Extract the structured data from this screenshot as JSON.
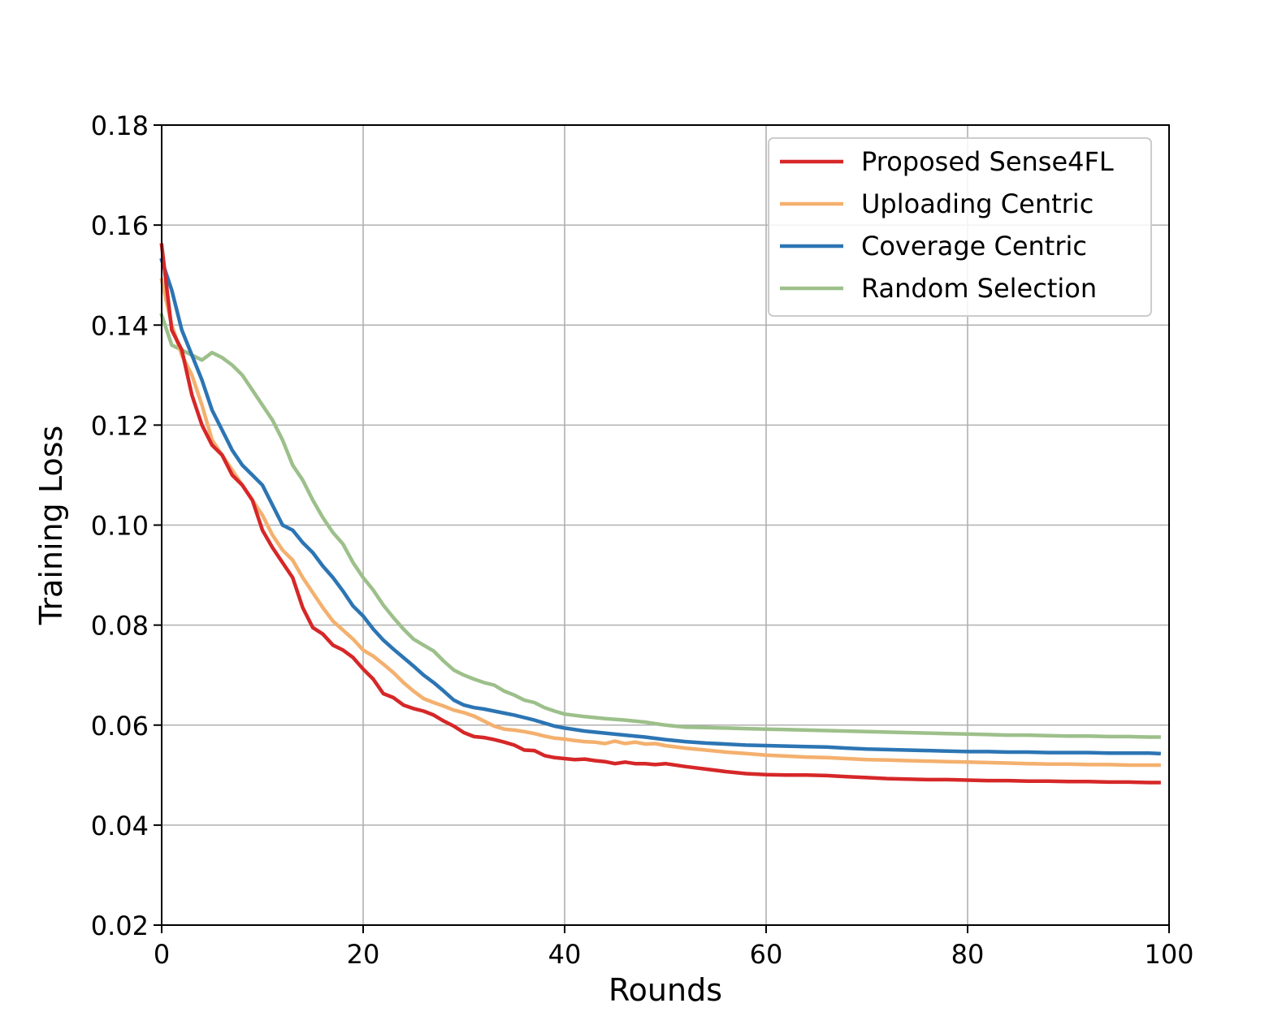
{
  "chart_data": {
    "type": "line",
    "title": "",
    "xlabel": "Rounds",
    "ylabel": "Training Loss",
    "xlim": [
      0,
      100
    ],
    "ylim": [
      0.02,
      0.18
    ],
    "xticks": [
      0,
      20,
      40,
      60,
      80,
      100
    ],
    "xtick_labels": [
      "0",
      "20",
      "40",
      "60",
      "80",
      "100"
    ],
    "yticks": [
      0.02,
      0.04,
      0.06,
      0.08,
      0.1,
      0.12,
      0.14,
      0.16,
      0.18
    ],
    "ytick_labels": [
      "0.02",
      "0.04",
      "0.06",
      "0.08",
      "0.10",
      "0.12",
      "0.14",
      "0.16",
      "0.18"
    ],
    "grid": true,
    "legend_position": "top-right",
    "series": [
      {
        "name": "Proposed Sense4FL",
        "color": "#d62728",
        "x": [
          0,
          1,
          2,
          3,
          4,
          5,
          6,
          7,
          8,
          9,
          10,
          11,
          12,
          13,
          14,
          15,
          16,
          17,
          18,
          19,
          20,
          21,
          22,
          23,
          24,
          25,
          26,
          27,
          28,
          29,
          30,
          31,
          32,
          33,
          34,
          35,
          36,
          37,
          38,
          39,
          40,
          41,
          42,
          43,
          44,
          45,
          46,
          47,
          48,
          49,
          50,
          52,
          54,
          56,
          58,
          60,
          62,
          64,
          66,
          68,
          70,
          72,
          74,
          76,
          78,
          80,
          82,
          84,
          86,
          88,
          90,
          92,
          94,
          96,
          98,
          99
        ],
        "y": [
          0.156,
          0.139,
          0.135,
          0.126,
          0.12,
          0.116,
          0.114,
          0.11,
          0.108,
          0.105,
          0.099,
          0.0955,
          0.0925,
          0.0895,
          0.0835,
          0.0795,
          0.0782,
          0.076,
          0.075,
          0.0735,
          0.0712,
          0.0692,
          0.0663,
          0.0655,
          0.064,
          0.0633,
          0.0628,
          0.062,
          0.0608,
          0.0598,
          0.0585,
          0.0577,
          0.0575,
          0.0571,
          0.0566,
          0.056,
          0.055,
          0.0549,
          0.0539,
          0.0535,
          0.0533,
          0.0531,
          0.0532,
          0.0529,
          0.0527,
          0.0523,
          0.0526,
          0.0523,
          0.0523,
          0.0521,
          0.0523,
          0.0517,
          0.0512,
          0.0507,
          0.0503,
          0.0501,
          0.05,
          0.05,
          0.0499,
          0.0497,
          0.0495,
          0.0493,
          0.0492,
          0.0491,
          0.0491,
          0.049,
          0.0489,
          0.0489,
          0.0488,
          0.0488,
          0.0487,
          0.0487,
          0.0486,
          0.0486,
          0.0485,
          0.0485
        ]
      },
      {
        "name": "Uploading Centric",
        "color": "#f4b06e",
        "x": [
          0,
          1,
          2,
          3,
          4,
          5,
          6,
          7,
          8,
          9,
          10,
          11,
          12,
          13,
          14,
          15,
          16,
          17,
          18,
          19,
          20,
          21,
          22,
          23,
          24,
          25,
          26,
          27,
          28,
          29,
          30,
          31,
          32,
          33,
          34,
          35,
          36,
          37,
          38,
          39,
          40,
          41,
          42,
          43,
          44,
          45,
          46,
          47,
          48,
          49,
          50,
          52,
          54,
          56,
          58,
          60,
          62,
          64,
          66,
          68,
          70,
          72,
          74,
          76,
          78,
          80,
          82,
          84,
          86,
          88,
          90,
          92,
          94,
          96,
          98,
          99
        ],
        "y": [
          0.149,
          0.14,
          0.134,
          0.13,
          0.124,
          0.117,
          0.114,
          0.111,
          0.108,
          0.105,
          0.102,
          0.098,
          0.095,
          0.093,
          0.0895,
          0.0865,
          0.0835,
          0.0808,
          0.079,
          0.0772,
          0.075,
          0.0738,
          0.0722,
          0.0705,
          0.0685,
          0.0668,
          0.0653,
          0.0645,
          0.0638,
          0.063,
          0.0625,
          0.0618,
          0.0608,
          0.0598,
          0.0592,
          0.059,
          0.0587,
          0.0583,
          0.0578,
          0.0574,
          0.0572,
          0.0569,
          0.0567,
          0.0566,
          0.0563,
          0.0568,
          0.0563,
          0.0566,
          0.0562,
          0.0563,
          0.0559,
          0.0554,
          0.055,
          0.0546,
          0.0543,
          0.054,
          0.0538,
          0.0536,
          0.0535,
          0.0533,
          0.0531,
          0.053,
          0.0529,
          0.0528,
          0.0527,
          0.0526,
          0.0525,
          0.0524,
          0.0523,
          0.0522,
          0.0522,
          0.0521,
          0.0521,
          0.052,
          0.052,
          0.052
        ]
      },
      {
        "name": "Coverage Centric",
        "color": "#2c75b4",
        "x": [
          0,
          1,
          2,
          3,
          4,
          5,
          6,
          7,
          8,
          9,
          10,
          11,
          12,
          13,
          14,
          15,
          16,
          17,
          18,
          19,
          20,
          21,
          22,
          23,
          24,
          25,
          26,
          27,
          28,
          29,
          30,
          31,
          32,
          33,
          34,
          35,
          36,
          37,
          38,
          39,
          40,
          42,
          44,
          46,
          48,
          50,
          52,
          54,
          56,
          58,
          60,
          62,
          64,
          66,
          68,
          70,
          72,
          74,
          76,
          78,
          80,
          82,
          84,
          86,
          88,
          90,
          92,
          94,
          96,
          98,
          99
        ],
        "y": [
          0.153,
          0.147,
          0.139,
          0.134,
          0.129,
          0.123,
          0.119,
          0.115,
          0.112,
          0.11,
          0.108,
          0.104,
          0.1,
          0.099,
          0.0965,
          0.0945,
          0.0918,
          0.0895,
          0.0868,
          0.0838,
          0.0818,
          0.0792,
          0.077,
          0.0752,
          0.0735,
          0.0718,
          0.07,
          0.0685,
          0.0668,
          0.065,
          0.064,
          0.0635,
          0.0632,
          0.0628,
          0.0624,
          0.062,
          0.0615,
          0.061,
          0.0604,
          0.0598,
          0.0594,
          0.0588,
          0.0584,
          0.058,
          0.0576,
          0.0571,
          0.0567,
          0.0564,
          0.0562,
          0.056,
          0.0559,
          0.0558,
          0.0557,
          0.0556,
          0.0554,
          0.0552,
          0.0551,
          0.055,
          0.0549,
          0.0548,
          0.0547,
          0.0547,
          0.0546,
          0.0546,
          0.0545,
          0.0545,
          0.0545,
          0.0544,
          0.0544,
          0.0544,
          0.0543
        ]
      },
      {
        "name": "Random Selection",
        "color": "#9dc08b",
        "x": [
          0,
          1,
          2,
          3,
          4,
          5,
          6,
          7,
          8,
          9,
          10,
          11,
          12,
          13,
          14,
          15,
          16,
          17,
          18,
          19,
          20,
          21,
          22,
          23,
          24,
          25,
          26,
          27,
          28,
          29,
          30,
          31,
          32,
          33,
          34,
          35,
          36,
          37,
          38,
          39,
          40,
          42,
          44,
          46,
          48,
          50,
          52,
          54,
          56,
          58,
          60,
          62,
          64,
          66,
          68,
          70,
          72,
          74,
          76,
          78,
          80,
          82,
          84,
          86,
          88,
          90,
          92,
          94,
          96,
          98,
          99
        ],
        "y": [
          0.142,
          0.136,
          0.135,
          0.134,
          0.133,
          0.1345,
          0.1335,
          0.132,
          0.13,
          0.127,
          0.124,
          0.121,
          0.117,
          0.112,
          0.109,
          0.105,
          0.1015,
          0.0985,
          0.0962,
          0.0925,
          0.0895,
          0.087,
          0.084,
          0.0815,
          0.0792,
          0.0772,
          0.076,
          0.0748,
          0.0728,
          0.071,
          0.07,
          0.0692,
          0.0685,
          0.068,
          0.0668,
          0.066,
          0.065,
          0.0645,
          0.0635,
          0.0628,
          0.0622,
          0.0617,
          0.0613,
          0.061,
          0.0606,
          0.06,
          0.0596,
          0.0595,
          0.0594,
          0.0593,
          0.0592,
          0.0591,
          0.059,
          0.0589,
          0.0588,
          0.0587,
          0.0586,
          0.0585,
          0.0584,
          0.0583,
          0.0582,
          0.0581,
          0.058,
          0.058,
          0.0579,
          0.0578,
          0.0578,
          0.0577,
          0.0577,
          0.0576,
          0.0576
        ]
      }
    ]
  }
}
